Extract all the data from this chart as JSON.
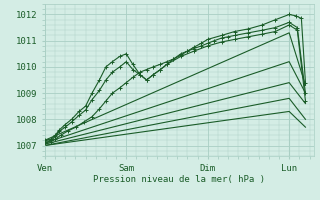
{
  "background_color": "#d4ede5",
  "grid_color": "#aacfc4",
  "line_color": "#1a5c28",
  "xlabel": "Pression niveau de la mer( hPa )",
  "xtick_labels": [
    "Ven",
    "Sam",
    "Dim",
    "Lun"
  ],
  "ytick_labels": [
    1007,
    1008,
    1009,
    1010,
    1011,
    1012
  ],
  "ylim": [
    1006.6,
    1012.4
  ],
  "xlim": [
    0.0,
    3.3
  ],
  "xtick_positions": [
    0,
    1,
    2,
    3
  ],
  "vline_x": 3.0,
  "marked_series": [
    {
      "x": [
        0.0,
        0.08,
        0.13,
        0.18,
        0.25,
        0.33,
        0.42,
        0.5,
        0.58,
        0.67,
        0.75,
        0.83,
        0.92,
        1.0,
        1.08,
        1.17,
        1.25,
        1.33,
        1.42,
        1.5,
        1.58,
        1.67,
        1.75,
        1.83,
        1.92,
        2.0,
        2.08,
        2.17,
        2.25,
        2.33,
        2.5,
        2.67,
        2.83,
        3.0,
        3.1,
        3.2
      ],
      "y": [
        1007.2,
        1007.25,
        1007.4,
        1007.6,
        1007.8,
        1008.0,
        1008.3,
        1008.5,
        1009.0,
        1009.5,
        1010.0,
        1010.2,
        1010.4,
        1010.5,
        1010.1,
        1009.7,
        1009.5,
        1009.7,
        1009.9,
        1010.1,
        1010.3,
        1010.5,
        1010.6,
        1010.7,
        1010.8,
        1010.9,
        1011.0,
        1011.1,
        1011.15,
        1011.2,
        1011.3,
        1011.4,
        1011.5,
        1011.7,
        1011.5,
        1009.0
      ]
    },
    {
      "x": [
        0.0,
        0.08,
        0.13,
        0.18,
        0.25,
        0.33,
        0.42,
        0.5,
        0.58,
        0.67,
        0.75,
        0.83,
        0.92,
        1.0,
        1.08,
        1.17,
        1.25,
        1.33,
        1.42,
        1.5,
        1.67,
        1.83,
        2.0,
        2.17,
        2.33,
        2.5,
        2.67,
        2.83,
        3.0,
        3.1,
        3.2
      ],
      "y": [
        1007.15,
        1007.2,
        1007.35,
        1007.55,
        1007.7,
        1007.9,
        1008.15,
        1008.35,
        1008.75,
        1009.1,
        1009.5,
        1009.8,
        1010.0,
        1010.2,
        1009.9,
        1009.7,
        1009.5,
        1009.7,
        1009.9,
        1010.1,
        1010.4,
        1010.6,
        1010.8,
        1010.95,
        1011.05,
        1011.15,
        1011.25,
        1011.35,
        1011.6,
        1011.4,
        1008.7
      ]
    },
    {
      "x": [
        0.0,
        0.08,
        0.13,
        0.2,
        0.28,
        0.38,
        0.48,
        0.58,
        0.67,
        0.75,
        0.83,
        0.92,
        1.0,
        1.08,
        1.17,
        1.25,
        1.33,
        1.42,
        1.5,
        1.58,
        1.67,
        1.75,
        1.83,
        1.92,
        2.0,
        2.17,
        2.33,
        2.5,
        2.67,
        2.83,
        3.0,
        3.08,
        3.15,
        3.2
      ],
      "y": [
        1007.1,
        1007.15,
        1007.25,
        1007.4,
        1007.55,
        1007.7,
        1007.9,
        1008.1,
        1008.4,
        1008.7,
        1009.0,
        1009.2,
        1009.4,
        1009.6,
        1009.8,
        1009.9,
        1010.0,
        1010.1,
        1010.2,
        1010.3,
        1010.45,
        1010.6,
        1010.75,
        1010.9,
        1011.05,
        1011.2,
        1011.35,
        1011.45,
        1011.6,
        1011.8,
        1012.0,
        1011.95,
        1011.85,
        1009.4
      ]
    }
  ],
  "plain_series": [
    {
      "x": [
        0.0,
        3.0,
        3.2
      ],
      "y": [
        1007.2,
        1011.3,
        1009.3
      ]
    },
    {
      "x": [
        0.0,
        3.0,
        3.2
      ],
      "y": [
        1007.1,
        1010.2,
        1009.0
      ]
    },
    {
      "x": [
        0.0,
        3.0,
        3.2
      ],
      "y": [
        1007.05,
        1009.4,
        1008.6
      ]
    },
    {
      "x": [
        0.0,
        3.0,
        3.2
      ],
      "y": [
        1007.0,
        1008.8,
        1008.0
      ]
    },
    {
      "x": [
        0.0,
        3.0,
        3.2
      ],
      "y": [
        1007.0,
        1008.3,
        1007.7
      ]
    }
  ]
}
